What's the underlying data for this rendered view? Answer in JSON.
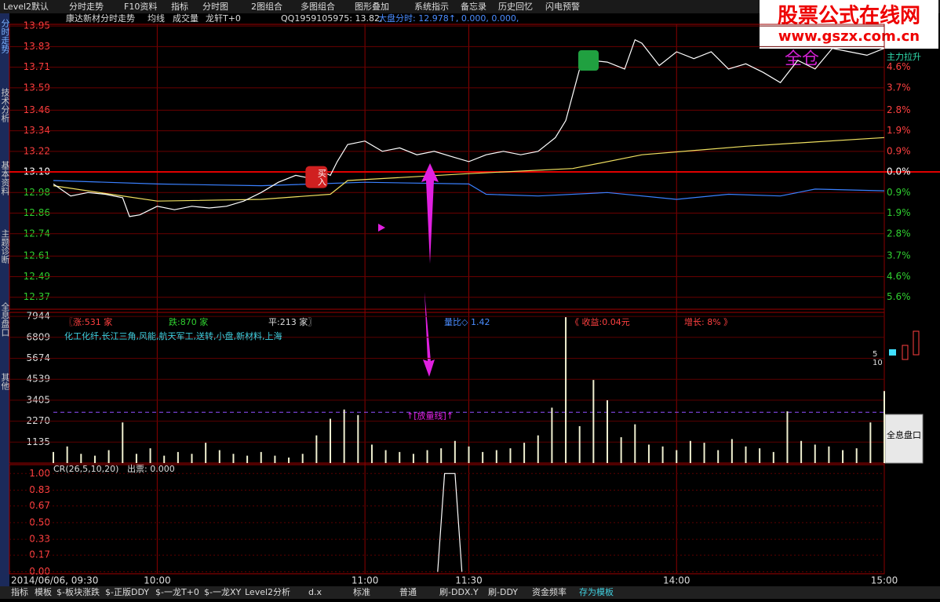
{
  "menu": [
    "Level2默认",
    "分时走势",
    "F10资料",
    "指标",
    "分时图",
    "2图组合",
    "多图组合",
    "图形叠加",
    "系统指示",
    "备忘录",
    "历史回忆",
    "闪电预警"
  ],
  "side_tabs": [
    "分时走势",
    "技术分析",
    "基本资料",
    "主题诊断",
    "全息盘口",
    "其他"
  ],
  "watermark": {
    "title": "股票公式在线网",
    "url": "www.gszx.com.cn"
  },
  "header": {
    "stock": "康达新材分时走势",
    "items": [
      "均线",
      "成交量",
      "龙轩T+0"
    ],
    "qq": "QQ1959105975: 13.82,",
    "index": "大盘分时: 12.978↑, 0.000, 0.000,"
  },
  "price_panel": {
    "xlim": [
      0,
      240
    ],
    "ylim": [
      12.3,
      13.96
    ],
    "yticks": [
      {
        "value": 13.95,
        "label": "13.95"
      },
      {
        "value": 13.83,
        "label": "13.83"
      },
      {
        "value": 13.71,
        "label": "13.71"
      },
      {
        "value": 13.59,
        "label": "13.59"
      },
      {
        "value": 13.46,
        "label": "13.46"
      },
      {
        "value": 13.34,
        "label": "13.34"
      },
      {
        "value": 13.22,
        "label": "13.22"
      },
      {
        "value": 13.1,
        "label": "13.10"
      },
      {
        "value": 12.98,
        "label": "12.98"
      },
      {
        "value": 12.86,
        "label": "12.86"
      },
      {
        "value": 12.74,
        "label": "12.74"
      },
      {
        "value": 12.61,
        "label": "12.61"
      },
      {
        "value": 12.49,
        "label": "12.49"
      },
      {
        "value": 12.37,
        "label": "12.37"
      }
    ],
    "pct_labels": [
      "4.6%",
      "3.7%",
      "2.8%",
      "1.9%",
      "0.9%",
      "0.0%",
      "0.9%",
      "1.9%",
      "2.8%",
      "3.7%",
      "4.6%",
      "5.6%"
    ],
    "main_label": "主力拉升",
    "full_text": "全仓",
    "price": {
      "x": [
        0,
        5,
        10,
        15,
        20,
        22,
        25,
        30,
        35,
        40,
        45,
        50,
        55,
        60,
        65,
        70,
        75,
        78,
        80,
        82,
        85,
        90,
        95,
        100,
        105,
        110,
        115,
        120,
        125,
        130,
        135,
        140,
        145,
        148,
        150,
        152,
        155,
        160,
        165,
        168,
        170,
        175,
        180,
        185,
        190,
        195,
        200,
        205,
        210,
        215,
        220,
        225,
        230,
        235,
        240
      ],
      "values": [
        13.03,
        12.96,
        12.98,
        12.97,
        12.95,
        12.84,
        12.85,
        12.9,
        12.88,
        12.9,
        12.89,
        12.9,
        12.93,
        12.98,
        13.04,
        13.08,
        13.06,
        13.1,
        13.08,
        13.16,
        13.26,
        13.28,
        13.22,
        13.24,
        13.2,
        13.22,
        13.19,
        13.16,
        13.2,
        13.22,
        13.2,
        13.22,
        13.3,
        13.4,
        13.55,
        13.7,
        13.75,
        13.74,
        13.7,
        13.87,
        13.85,
        13.72,
        13.8,
        13.76,
        13.8,
        13.7,
        13.73,
        13.68,
        13.62,
        13.75,
        13.7,
        13.82,
        13.8,
        13.78,
        13.82
      ]
    },
    "avg": {
      "x": [
        0,
        30,
        60,
        80,
        85,
        120,
        150,
        170,
        200,
        240
      ],
      "values": [
        13.02,
        12.93,
        12.94,
        12.97,
        13.05,
        13.09,
        13.12,
        13.2,
        13.25,
        13.3
      ]
    },
    "index_line": {
      "x": [
        0,
        30,
        60,
        90,
        120,
        125,
        140,
        160,
        180,
        195,
        210,
        220,
        240
      ],
      "values": [
        13.05,
        13.03,
        13.02,
        13.04,
        13.03,
        12.97,
        12.96,
        12.98,
        12.94,
        12.97,
        12.96,
        13.0,
        12.99
      ]
    },
    "buy": {
      "x": 76,
      "value": 13.07,
      "label": "买入"
    }
  },
  "volume_panel": {
    "ylim": [
      0,
      8160
    ],
    "yticks": [
      7944,
      6809,
      5674,
      4539,
      3405,
      2270,
      1135
    ],
    "stats": [
      "〖涨:531 家",
      "跌:870 家",
      "平:213 家〗",
      "量比◇ 1.42",
      "《 收益:0.04元",
      "增长: 8% 》"
    ],
    "sectors": "化工化纤,长江三角,风能,航天军工,送转,小盘,新材料,上海",
    "line": {
      "value": 2750,
      "label": "↑[放量线]↑"
    },
    "x": [
      0,
      4,
      8,
      12,
      16,
      20,
      24,
      28,
      32,
      36,
      40,
      44,
      48,
      52,
      56,
      60,
      64,
      68,
      72,
      76,
      80,
      84,
      88,
      92,
      96,
      100,
      104,
      108,
      112,
      116,
      120,
      124,
      128,
      132,
      136,
      140,
      144,
      148,
      152,
      156,
      160,
      164,
      168,
      172,
      176,
      180,
      184,
      188,
      192,
      196,
      200,
      204,
      208,
      212,
      216,
      220,
      224,
      228,
      232,
      236,
      240
    ],
    "values": [
      600,
      900,
      500,
      400,
      700,
      2200,
      500,
      800,
      400,
      600,
      500,
      1100,
      700,
      500,
      400,
      600,
      400,
      300,
      500,
      1500,
      2400,
      2900,
      2600,
      1000,
      700,
      600,
      500,
      700,
      800,
      1200,
      900,
      600,
      700,
      800,
      1100,
      1500,
      3000,
      7900,
      2000,
      4500,
      3400,
      1400,
      2100,
      1000,
      900,
      700,
      1200,
      1100,
      700,
      1300,
      900,
      800,
      600,
      2800,
      1200,
      1000,
      900,
      700,
      800,
      2200,
      3900
    ]
  },
  "cr_panel": {
    "title": "CR(26,5,10,20)",
    "sub": "出票: 0.000",
    "ylim": [
      -0.02,
      1.09
    ],
    "yticks": [
      {
        "value": 1.0,
        "label": "1.00"
      },
      {
        "value": 0.83,
        "label": "0.83"
      },
      {
        "value": 0.67,
        "label": "0.67"
      },
      {
        "value": 0.5,
        "label": "0.50"
      },
      {
        "value": 0.33,
        "label": "0.33"
      },
      {
        "value": 0.17,
        "label": "0.17"
      },
      {
        "value": 0,
        "label": "0.00"
      }
    ],
    "x": [
      111,
      113,
      116,
      118
    ],
    "values": [
      0,
      1.0,
      1.0,
      0
    ]
  },
  "time_axis": {
    "date": "2014/06/06, 09:30",
    "ticks": [
      {
        "value": 30,
        "label": "10:00"
      },
      {
        "value": 90,
        "label": "11:00"
      },
      {
        "value": 120,
        "label": "11:30"
      },
      {
        "value": 180,
        "label": "14:00"
      },
      {
        "value": 240,
        "label": "15:00"
      }
    ]
  },
  "side_widget": {
    "nums": [
      "5",
      "10"
    ],
    "button": "全息盘口"
  },
  "bottom_tabs": [
    "指标",
    "模板",
    "$-板块涨跌",
    "$-正版DDY",
    "$-一龙T+0",
    "$-一龙XY",
    "Level2分析",
    "d.x",
    "标准",
    "普通",
    "刷-DDX.Y",
    "刷-DDY",
    "资金频率",
    "存为模板"
  ]
}
